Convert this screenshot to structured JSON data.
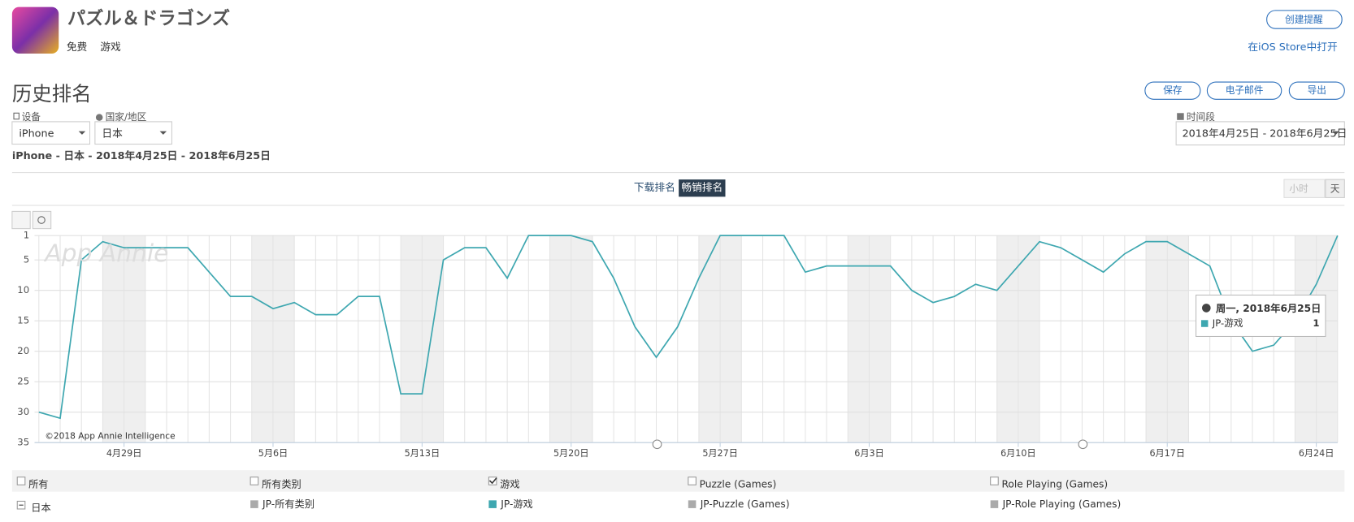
{
  "app": {
    "name": "パズル＆ドラゴンズ",
    "price": "免费",
    "category": "游戏",
    "alert_button": "创建提醒",
    "store_link": "在iOS Store中打开"
  },
  "section": {
    "title": "历史排名",
    "buttons": [
      "保存",
      "电子邮件",
      "导出"
    ],
    "device_label": "设备",
    "device": "iPhone",
    "country_label": "国家/地区",
    "country": "日本",
    "period_label": "时间段",
    "period": "2018年4月25日 - 2018年6月25日",
    "subtitle": "iPhone - 日本 - 2018年4月25日 - 2018年6月25日",
    "tabs": [
      "下载排名",
      "畅销排名"
    ],
    "granularity": [
      "小时",
      "天"
    ]
  },
  "chart_data": {
    "type": "line",
    "watermark": "App Annie",
    "copyright": "©2018 App Annie Intelligence",
    "x": [
      "2018-04-25",
      "2018-04-26",
      "2018-04-27",
      "2018-04-28",
      "2018-04-29",
      "2018-04-30",
      "2018-05-01",
      "2018-05-02",
      "2018-05-03",
      "2018-05-04",
      "2018-05-05",
      "2018-05-06",
      "2018-05-07",
      "2018-05-08",
      "2018-05-09",
      "2018-05-10",
      "2018-05-11",
      "2018-05-12",
      "2018-05-13",
      "2018-05-14",
      "2018-05-15",
      "2018-05-16",
      "2018-05-17",
      "2018-05-18",
      "2018-05-19",
      "2018-05-20",
      "2018-05-21",
      "2018-05-22",
      "2018-05-23",
      "2018-05-24",
      "2018-05-25",
      "2018-05-26",
      "2018-05-27",
      "2018-05-28",
      "2018-05-29",
      "2018-05-30",
      "2018-05-31",
      "2018-06-01",
      "2018-06-02",
      "2018-06-03",
      "2018-06-04",
      "2018-06-05",
      "2018-06-06",
      "2018-06-07",
      "2018-06-08",
      "2018-06-09",
      "2018-06-10",
      "2018-06-11",
      "2018-06-12",
      "2018-06-13",
      "2018-06-14",
      "2018-06-15",
      "2018-06-16",
      "2018-06-17",
      "2018-06-18",
      "2018-06-19",
      "2018-06-20",
      "2018-06-21",
      "2018-06-22",
      "2018-06-23",
      "2018-06-24",
      "2018-06-25"
    ],
    "xticks": [
      {
        "value": "2018-04-29",
        "label": "4月29日"
      },
      {
        "value": "2018-05-06",
        "label": "5月6日"
      },
      {
        "value": "2018-05-13",
        "label": "5月13日"
      },
      {
        "value": "2018-05-20",
        "label": "5月20日"
      },
      {
        "value": "2018-05-27",
        "label": "5月27日"
      },
      {
        "value": "2018-06-03",
        "label": "6月3日"
      },
      {
        "value": "2018-06-10",
        "label": "6月10日"
      },
      {
        "value": "2018-06-17",
        "label": "6月17日"
      },
      {
        "value": "2018-06-24",
        "label": "6月24日"
      }
    ],
    "ylim": [
      1,
      35
    ],
    "y_inverted": true,
    "yticks": [
      1,
      5,
      10,
      15,
      20,
      25,
      30,
      35
    ],
    "grid": true,
    "series": [
      {
        "name": "JP-游戏",
        "color": "#3ea7b0",
        "values": [
          30,
          31,
          5,
          2,
          3,
          3,
          3,
          3,
          7,
          11,
          11,
          13,
          12,
          14,
          14,
          11,
          11,
          27,
          27,
          5,
          3,
          3,
          8,
          1,
          1,
          1,
          2,
          8,
          16,
          21,
          16,
          8,
          1,
          1,
          1,
          1,
          7,
          6,
          6,
          6,
          6,
          10,
          12,
          11,
          9,
          10,
          6,
          2,
          3,
          5,
          7,
          4,
          2,
          2,
          4,
          6,
          15,
          20,
          19,
          15,
          9,
          1
        ]
      }
    ],
    "tooltip": {
      "date": "周一, 2018年6月25日"
    },
    "filters": [
      "所有",
      "所有类别",
      "游戏",
      "Puzzle (Games)",
      "Role Playing (Games)"
    ],
    "country_row": "日本",
    "legend_items": [
      {
        "name": "JP-所有类别",
        "color": "#aaaaaa"
      },
      {
        "name": "JP-游戏",
        "color": "#3ea7b0"
      },
      {
        "name": "JP-Puzzle (Games)",
        "color": "#aaaaaa"
      },
      {
        "name": "JP-Role Playing (Games)",
        "color": "#aaaaaa"
      }
    ]
  }
}
